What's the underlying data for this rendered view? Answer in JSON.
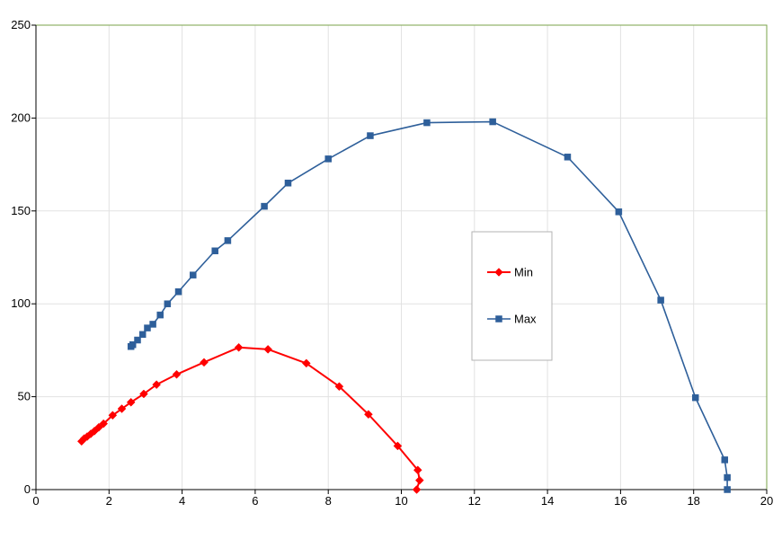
{
  "chart_data": {
    "type": "scatter",
    "xlim": [
      0,
      20
    ],
    "ylim": [
      0,
      250
    ],
    "x_ticks": [
      0,
      2,
      4,
      6,
      8,
      10,
      12,
      14,
      16,
      18,
      20
    ],
    "y_ticks": [
      0,
      50,
      100,
      150,
      200,
      250
    ],
    "grid": true,
    "legend_position": "center-right",
    "series": [
      {
        "name": "Min",
        "color": "#ff0000",
        "marker": "diamond",
        "points": [
          [
            1.25,
            26
          ],
          [
            1.32,
            27.5
          ],
          [
            1.4,
            28.5
          ],
          [
            1.5,
            30
          ],
          [
            1.6,
            31.5
          ],
          [
            1.72,
            33.5
          ],
          [
            1.85,
            35.5
          ],
          [
            2.1,
            40
          ],
          [
            2.35,
            43.5
          ],
          [
            2.6,
            47
          ],
          [
            2.95,
            51.5
          ],
          [
            3.3,
            56.5
          ],
          [
            3.85,
            62
          ],
          [
            4.6,
            68.5
          ],
          [
            5.55,
            76.5
          ],
          [
            6.35,
            75.5
          ],
          [
            7.4,
            68
          ],
          [
            8.3,
            55.5
          ],
          [
            9.1,
            40.5
          ],
          [
            9.9,
            23.5
          ],
          [
            10.45,
            10.5
          ],
          [
            10.5,
            5
          ],
          [
            10.42,
            0
          ]
        ]
      },
      {
        "name": "Max",
        "color": "#2e5f9a",
        "marker": "square",
        "points": [
          [
            2.6,
            77
          ],
          [
            2.65,
            78
          ],
          [
            2.78,
            80.5
          ],
          [
            2.92,
            83.5
          ],
          [
            3.05,
            87
          ],
          [
            3.2,
            89
          ],
          [
            3.4,
            94
          ],
          [
            3.6,
            100
          ],
          [
            3.9,
            106.5
          ],
          [
            4.3,
            115.5
          ],
          [
            4.9,
            128.5
          ],
          [
            5.25,
            134
          ],
          [
            6.25,
            152.5
          ],
          [
            6.9,
            165
          ],
          [
            8.0,
            178
          ],
          [
            9.15,
            190.5
          ],
          [
            10.7,
            197.5
          ],
          [
            12.5,
            198
          ],
          [
            14.55,
            179
          ],
          [
            15.95,
            149.5
          ],
          [
            17.1,
            102
          ],
          [
            18.05,
            49.5
          ],
          [
            18.85,
            16
          ],
          [
            18.92,
            6.5
          ],
          [
            18.92,
            0
          ]
        ]
      }
    ]
  }
}
